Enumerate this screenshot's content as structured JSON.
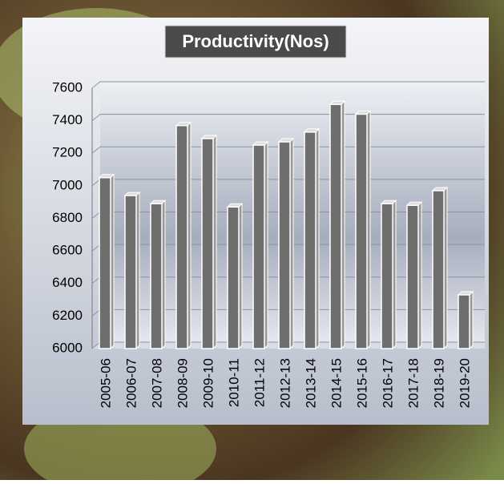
{
  "chart_data": {
    "type": "bar",
    "title": "Productivity(Nos)",
    "categories": [
      "2005-06",
      "2006-07",
      "2007-08",
      "2008-09",
      "2009-10",
      "2010-11",
      "2011-12",
      "2012-13",
      "2013-14",
      "2014-15",
      "2015-16",
      "2016-17",
      "2017-18",
      "2018-19",
      "2019-20"
    ],
    "values": [
      7050,
      6940,
      6890,
      7370,
      7290,
      6870,
      7250,
      7270,
      7330,
      7500,
      7440,
      6890,
      6880,
      6970,
      6330
    ],
    "color": "#6e6e6e",
    "ylim": [
      6000,
      7600
    ],
    "yticks": [
      6000,
      6200,
      6400,
      6600,
      6800,
      7000,
      7200,
      7400,
      7600
    ],
    "grid": true
  }
}
